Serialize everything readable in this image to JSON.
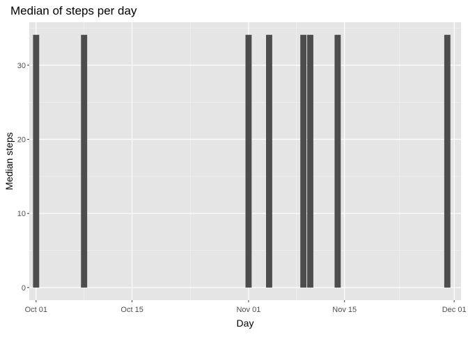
{
  "chart_data": {
    "type": "bar",
    "title": "Median of steps per day",
    "xlabel": "Day",
    "ylabel": "Median steps",
    "x_type": "date",
    "xlim": [
      "2012-09-30",
      "2012-12-02"
    ],
    "ylim": [
      -1.7,
      35.8
    ],
    "x_ticks": [
      {
        "date": "2012-10-01",
        "label": "Oct 01"
      },
      {
        "date": "2012-10-15",
        "label": "Oct 15"
      },
      {
        "date": "2012-11-01",
        "label": "Nov 01"
      },
      {
        "date": "2012-11-15",
        "label": "Nov 15"
      },
      {
        "date": "2012-12-01",
        "label": "Dec 01"
      }
    ],
    "y_ticks": [
      {
        "value": 0,
        "label": "0"
      },
      {
        "value": 10,
        "label": "10"
      },
      {
        "value": 20,
        "label": "20"
      },
      {
        "value": 30,
        "label": "30"
      }
    ],
    "x": [
      "2012-10-01",
      "2012-10-08",
      "2012-11-01",
      "2012-11-04",
      "2012-11-09",
      "2012-11-10",
      "2012-11-14",
      "2012-11-30"
    ],
    "values": [
      34.1,
      34.1,
      34.1,
      34.1,
      34.1,
      34.1,
      34.1,
      34.1
    ],
    "grid": true,
    "legend": "none",
    "colors": {
      "panel": "#e5e5e5",
      "grid_major": "#ffffff",
      "grid_minor": "#f2f2f2",
      "bar": "#4d4d4d",
      "tick_label": "#4d4d4d",
      "tick": "#333333"
    }
  }
}
